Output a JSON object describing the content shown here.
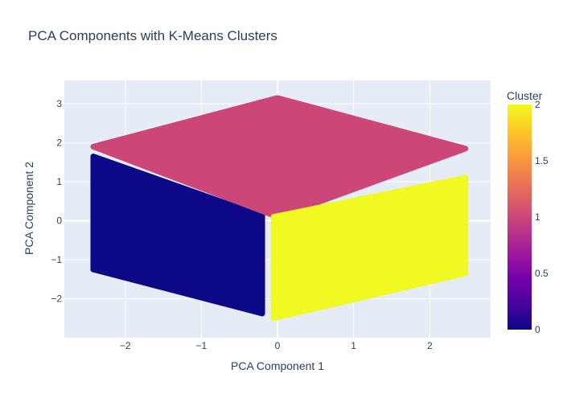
{
  "chart_data": {
    "type": "scatter",
    "title": "PCA Components with K-Means Clusters",
    "xlabel": "PCA Component 1",
    "ylabel": "PCA Component 2",
    "xlim": [
      -2.8,
      2.8
    ],
    "ylim": [
      -3.0,
      3.6
    ],
    "xticks": [
      -2,
      -1,
      0,
      1,
      2
    ],
    "yticks": [
      -2,
      -1,
      0,
      1,
      2,
      3
    ],
    "grid": true,
    "colorbar": {
      "title": "Cluster",
      "range": [
        0,
        2
      ],
      "ticks": [
        "0",
        "0.5",
        "1",
        "1.5",
        "2"
      ],
      "colorscale": [
        "#0d0887",
        "#46039f",
        "#7201a8",
        "#9c179e",
        "#bd3786",
        "#d8576b",
        "#ed7953",
        "#fb9f3a",
        "#fdca26",
        "#f0f921"
      ]
    },
    "clusters": [
      {
        "value": 0,
        "color": "#0d0887",
        "region": [
          [
            -2.42,
            1.65
          ],
          [
            -0.2,
            0.12
          ],
          [
            -0.2,
            -2.38
          ],
          [
            -2.42,
            -1.25
          ]
        ]
      },
      {
        "value": 1,
        "color": "#cc4778",
        "region": [
          [
            -2.42,
            1.9
          ],
          [
            0.0,
            3.15
          ],
          [
            2.47,
            1.85
          ],
          [
            0.0,
            0.1
          ]
        ]
      },
      {
        "value": 2,
        "color": "#f0f921",
        "region": [
          [
            -0.05,
            0.1
          ],
          [
            2.47,
            1.1
          ],
          [
            2.47,
            -1.35
          ],
          [
            -0.05,
            -2.5
          ]
        ]
      }
    ]
  }
}
